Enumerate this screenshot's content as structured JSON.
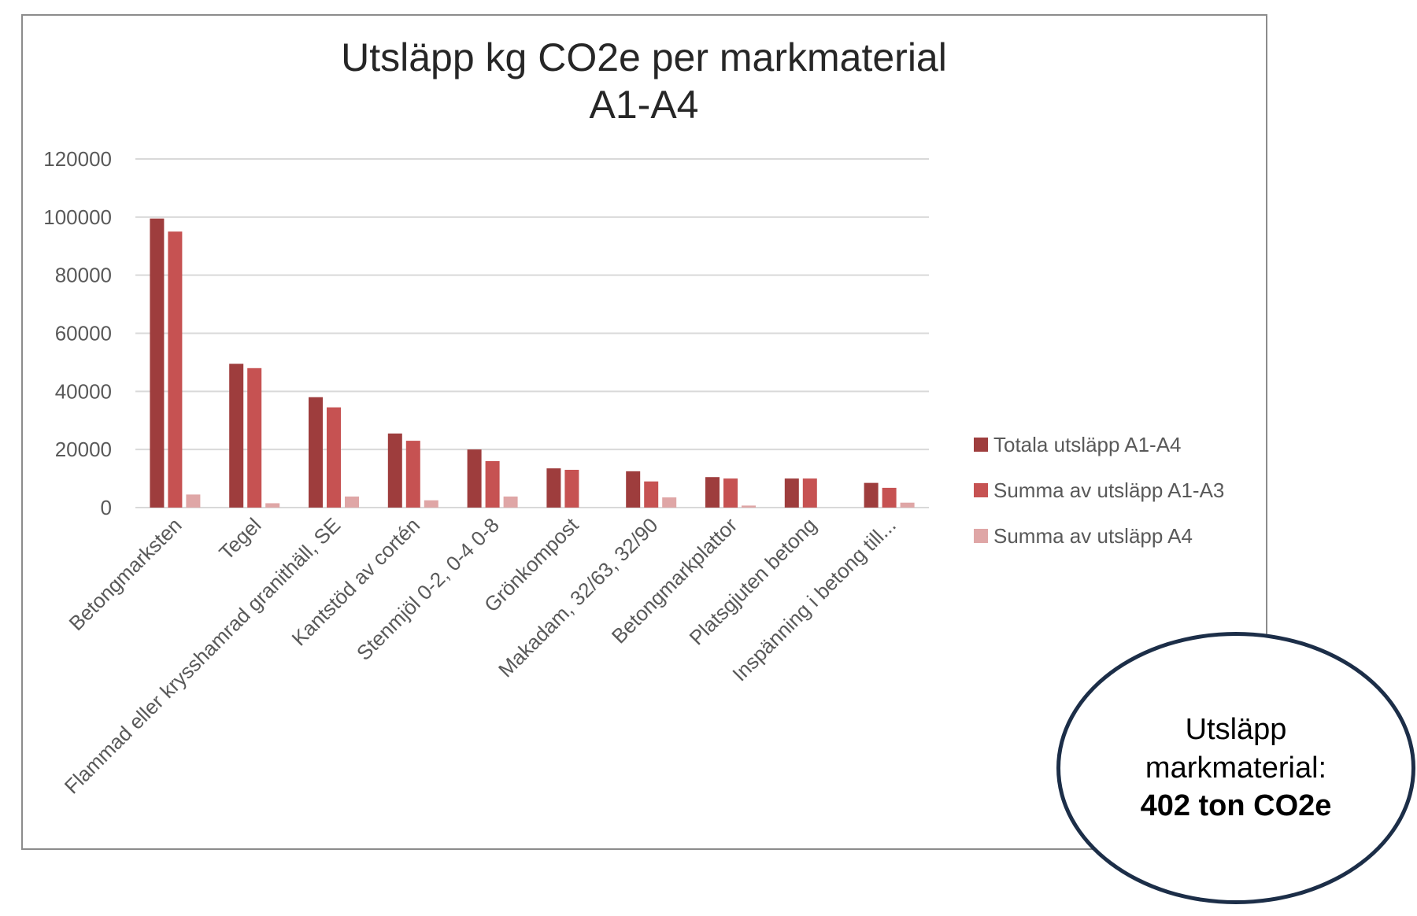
{
  "chart_data": {
    "type": "bar",
    "title": [
      "Utsläpp kg CO2e per markmaterial",
      "A1-A4"
    ],
    "xlabel": "",
    "ylabel": "",
    "ylim": [
      0,
      120000
    ],
    "yticks": [
      0,
      20000,
      40000,
      60000,
      80000,
      100000,
      120000
    ],
    "grid": true,
    "legend_position": "right",
    "categories": [
      "Betongmarksten",
      "Tegel",
      "Flammad eller krysshamrad granithäll, SE",
      "Kantstöd av cortén",
      "Stenmjöl 0-2, 0-4 0-8",
      "Grönkompost",
      "Makadam, 32/63, 32/90",
      "Betongmarkplattor",
      "Platsgjuten betong",
      "Inspänning i betong till..."
    ],
    "series": [
      {
        "name": "Totala utsläpp A1-A4",
        "color": "#9e3d3d",
        "values": [
          99500,
          49500,
          38000,
          25500,
          20000,
          13500,
          12500,
          10500,
          10000,
          8500
        ]
      },
      {
        "name": "Summa av utsläpp A1-A3",
        "color": "#c65252",
        "values": [
          95000,
          48000,
          34500,
          23000,
          16000,
          13000,
          9000,
          10000,
          10000,
          6800
        ]
      },
      {
        "name": "Summa av utsläpp A4",
        "color": "#dfa6a6",
        "values": [
          4500,
          1500,
          3800,
          2500,
          3800,
          0,
          3500,
          700,
          0,
          1700
        ]
      }
    ]
  },
  "summary": {
    "line1": "Utsläpp",
    "line2": "markmaterial:",
    "value": "402 ton CO2e",
    "border_color": "#1c2e48"
  }
}
